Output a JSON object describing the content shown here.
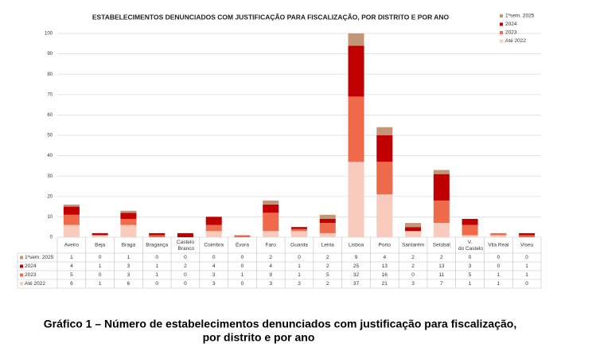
{
  "chart_data": {
    "type": "bar",
    "stacked": true,
    "title": "ESTABELECIMENTOS DENUNCIADOS COM JUSTIFICAÇÃO PARA FISCALIZAÇÃO, POR DISTRITO E POR ANO",
    "categories": [
      "Aveiro",
      "Beja",
      "Braga",
      "Bragança",
      "Castelo Branco",
      "Coimbra",
      "Évora",
      "Faro",
      "Guarda",
      "Leiria",
      "Lisboa",
      "Porto",
      "Santarém",
      "Setúbal",
      "V. do Castelo",
      "Vila Real",
      "Viseu"
    ],
    "series": [
      {
        "name": "1ºsem. 2025",
        "color": "#c3967a",
        "values": [
          1,
          0,
          1,
          0,
          0,
          0,
          0,
          2,
          0,
          2,
          9,
          4,
          2,
          2,
          0,
          0,
          0
        ]
      },
      {
        "name": "2024",
        "color": "#c00000",
        "values": [
          4,
          1,
          3,
          1,
          2,
          4,
          0,
          4,
          1,
          2,
          25,
          13,
          2,
          13,
          3,
          0,
          1
        ]
      },
      {
        "name": "2023",
        "color": "#ee6a4a",
        "values": [
          5,
          0,
          3,
          1,
          0,
          3,
          1,
          9,
          1,
          5,
          32,
          16,
          0,
          11,
          5,
          1,
          1
        ]
      },
      {
        "name": "Até 2022",
        "color": "#f8cbbd",
        "values": [
          6,
          1,
          6,
          0,
          0,
          3,
          0,
          3,
          3,
          2,
          37,
          21,
          3,
          7,
          1,
          1,
          0
        ]
      }
    ],
    "ylim": [
      0,
      100
    ],
    "yticks": [
      0,
      10,
      20,
      30,
      40,
      50,
      60,
      70,
      80,
      90,
      100
    ],
    "grid": true,
    "legend": "top-right",
    "caption": [
      "Gráfico 1  – Número de estabelecimentos denunciados com justificação para fiscalização,",
      "por distrito e por ano"
    ]
  }
}
